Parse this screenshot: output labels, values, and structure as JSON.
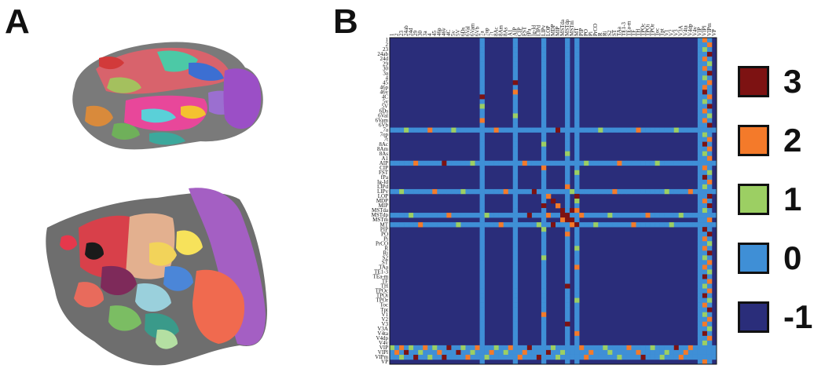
{
  "panels": {
    "a_label": "A",
    "b_label": "B"
  },
  "colors": {
    "neg1": "#2a2d7a",
    "zero": "#3f8fd6",
    "one": "#9ccf63",
    "two": "#f47a2a",
    "three": "#7d1212"
  },
  "legend": [
    {
      "label": "3",
      "color": "#7d1212"
    },
    {
      "label": "2",
      "color": "#f47a2a"
    },
    {
      "label": "1",
      "color": "#9ccf63"
    },
    {
      "label": "0",
      "color": "#3f8fd6"
    },
    {
      "label": "-1",
      "color": "#2a2d7a"
    }
  ],
  "chart_data": {
    "type": "heatmap",
    "row_labels": [
      "1",
      "2",
      "23",
      "24ab",
      "24d",
      "29",
      "30",
      "3a",
      "4",
      "45",
      "46p",
      "46v",
      "4C",
      "5v",
      "5V",
      "6Ds",
      "6Val",
      "6Vam",
      "6Vb",
      "7a",
      "7op",
      "7t",
      "8Ac",
      "8Am",
      "8As",
      "A1",
      "AIP",
      "CIP",
      "FST",
      "fPa",
      "Ig-Id",
      "LIPd",
      "LIPv",
      "LOP",
      "MDP",
      "MIP",
      "MSTda",
      "MSTdp",
      "MSTm",
      "MT",
      "PIP",
      "PO",
      "Pi",
      "PrCO",
      "R",
      "Ri",
      "S2",
      "ST",
      "TAa",
      "TE1-3",
      "TEa-m",
      "TF",
      "TH",
      "TPOc",
      "TPOi",
      "TPOr",
      "Toc",
      "Tpt",
      "V1",
      "V2",
      "V3",
      "V3A",
      "V4ta",
      "V4dp",
      "V4v",
      "VIP",
      "VIPl",
      "VIPm",
      "VP"
    ],
    "col_labels": [
      "1",
      "2",
      "23",
      "24ab",
      "24d",
      "29",
      "30",
      "3a",
      "4",
      "45",
      "46p",
      "46v",
      "4C",
      "5v",
      "5V",
      "6Ds",
      "6Val",
      "6Vam",
      "6Vb",
      "7a",
      "7op",
      "7t",
      "8Ac",
      "8Am",
      "8As",
      "A1",
      "AIP",
      "CIP",
      "FST",
      "fPa",
      "Ig-Id",
      "LIPd",
      "LIPv",
      "LOP",
      "MDP",
      "MIP",
      "MSTda",
      "MSTdp",
      "MSTm",
      "MT",
      "PIP",
      "PO",
      "Pi",
      "PrCO",
      "R",
      "Ri",
      "S2",
      "ST",
      "TAa",
      "TE1-3",
      "TEa-m",
      "TF",
      "TH",
      "TPOc",
      "TPOi",
      "TPOr",
      "Toc",
      "Tpt",
      "V1",
      "V2",
      "V3",
      "V3A",
      "V4ta",
      "V4dp",
      "V4v",
      "VIP",
      "VIPl",
      "VIPm",
      "VP"
    ],
    "value_range": [
      -1,
      3
    ],
    "base_value": -1,
    "zero_rows": [
      19,
      26,
      32,
      37,
      39,
      65,
      66,
      67
    ],
    "zero_cols": [
      19,
      26,
      32,
      37,
      39,
      65,
      66,
      67
    ],
    "cells": [
      [
        0,
        66,
        2
      ],
      [
        1,
        67,
        2
      ],
      [
        2,
        66,
        1
      ],
      [
        3,
        67,
        3
      ],
      [
        4,
        66,
        2
      ],
      [
        5,
        67,
        1
      ],
      [
        6,
        66,
        2
      ],
      [
        7,
        67,
        3
      ],
      [
        8,
        66,
        1
      ],
      [
        9,
        67,
        2
      ],
      [
        10,
        66,
        2
      ],
      [
        11,
        66,
        3
      ],
      [
        12,
        67,
        2
      ],
      [
        13,
        66,
        1
      ],
      [
        14,
        67,
        3
      ],
      [
        15,
        66,
        2
      ],
      [
        16,
        67,
        1
      ],
      [
        17,
        66,
        2
      ],
      [
        18,
        67,
        3
      ],
      [
        20,
        66,
        1
      ],
      [
        21,
        67,
        2
      ],
      [
        22,
        66,
        3
      ],
      [
        23,
        67,
        2
      ],
      [
        24,
        66,
        1
      ],
      [
        25,
        67,
        2
      ],
      [
        27,
        66,
        2
      ],
      [
        28,
        67,
        1
      ],
      [
        29,
        66,
        3
      ],
      [
        30,
        67,
        2
      ],
      [
        31,
        66,
        1
      ],
      [
        33,
        67,
        3
      ],
      [
        34,
        66,
        2
      ],
      [
        35,
        67,
        3
      ],
      [
        36,
        66,
        1
      ],
      [
        38,
        67,
        2
      ],
      [
        40,
        66,
        3
      ],
      [
        41,
        67,
        3
      ],
      [
        42,
        66,
        2
      ],
      [
        43,
        67,
        1
      ],
      [
        44,
        66,
        2
      ],
      [
        45,
        67,
        3
      ],
      [
        46,
        66,
        1
      ],
      [
        47,
        67,
        2
      ],
      [
        48,
        66,
        2
      ],
      [
        49,
        67,
        1
      ],
      [
        50,
        66,
        3
      ],
      [
        51,
        67,
        2
      ],
      [
        52,
        66,
        1
      ],
      [
        53,
        67,
        2
      ],
      [
        54,
        66,
        3
      ],
      [
        55,
        67,
        1
      ],
      [
        56,
        66,
        2
      ],
      [
        57,
        67,
        3
      ],
      [
        58,
        66,
        1
      ],
      [
        59,
        67,
        2
      ],
      [
        60,
        66,
        2
      ],
      [
        61,
        67,
        1
      ],
      [
        62,
        66,
        3
      ],
      [
        63,
        67,
        2
      ],
      [
        64,
        66,
        1
      ],
      [
        68,
        66,
        2
      ],
      [
        9,
        26,
        3
      ],
      [
        11,
        26,
        2
      ],
      [
        12,
        19,
        3
      ],
      [
        14,
        19,
        1
      ],
      [
        16,
        26,
        1
      ],
      [
        17,
        19,
        2
      ],
      [
        22,
        32,
        1
      ],
      [
        24,
        37,
        1
      ],
      [
        27,
        32,
        2
      ],
      [
        28,
        39,
        1
      ],
      [
        31,
        37,
        2
      ],
      [
        33,
        39,
        3
      ],
      [
        34,
        39,
        1
      ],
      [
        35,
        32,
        3
      ],
      [
        36,
        39,
        2
      ],
      [
        38,
        37,
        3
      ],
      [
        40,
        32,
        1
      ],
      [
        41,
        37,
        2
      ],
      [
        44,
        39,
        1
      ],
      [
        46,
        32,
        1
      ],
      [
        48,
        39,
        2
      ],
      [
        52,
        37,
        3
      ],
      [
        55,
        39,
        1
      ],
      [
        58,
        32,
        2
      ],
      [
        60,
        37,
        3
      ],
      [
        62,
        39,
        2
      ],
      [
        65,
        0,
        1
      ],
      [
        65,
        2,
        2
      ],
      [
        65,
        4,
        1
      ],
      [
        65,
        7,
        2
      ],
      [
        65,
        9,
        1
      ],
      [
        65,
        12,
        3
      ],
      [
        65,
        15,
        1
      ],
      [
        65,
        18,
        2
      ],
      [
        65,
        22,
        1
      ],
      [
        65,
        25,
        2
      ],
      [
        65,
        29,
        3
      ],
      [
        65,
        34,
        1
      ],
      [
        65,
        40,
        2
      ],
      [
        65,
        45,
        1
      ],
      [
        65,
        50,
        2
      ],
      [
        65,
        55,
        1
      ],
      [
        65,
        60,
        3
      ],
      [
        65,
        63,
        2
      ],
      [
        66,
        1,
        2
      ],
      [
        66,
        3,
        3
      ],
      [
        66,
        6,
        1
      ],
      [
        66,
        10,
        2
      ],
      [
        66,
        14,
        3
      ],
      [
        66,
        17,
        1
      ],
      [
        66,
        21,
        2
      ],
      [
        66,
        24,
        1
      ],
      [
        66,
        28,
        2
      ],
      [
        66,
        33,
        3
      ],
      [
        66,
        36,
        1
      ],
      [
        66,
        42,
        2
      ],
      [
        66,
        46,
        1
      ],
      [
        66,
        52,
        2
      ],
      [
        66,
        58,
        1
      ],
      [
        66,
        62,
        2
      ],
      [
        67,
        2,
        1
      ],
      [
        67,
        5,
        3
      ],
      [
        67,
        8,
        1
      ],
      [
        67,
        11,
        3
      ],
      [
        67,
        16,
        2
      ],
      [
        67,
        20,
        1
      ],
      [
        67,
        27,
        2
      ],
      [
        67,
        31,
        3
      ],
      [
        67,
        35,
        1
      ],
      [
        67,
        41,
        2
      ],
      [
        67,
        48,
        1
      ],
      [
        67,
        53,
        3
      ],
      [
        67,
        57,
        1
      ],
      [
        67,
        61,
        2
      ],
      [
        19,
        3,
        1
      ],
      [
        19,
        8,
        2
      ],
      [
        19,
        13,
        1
      ],
      [
        19,
        22,
        2
      ],
      [
        19,
        35,
        3
      ],
      [
        19,
        44,
        1
      ],
      [
        19,
        52,
        2
      ],
      [
        19,
        60,
        1
      ],
      [
        26,
        5,
        2
      ],
      [
        26,
        11,
        3
      ],
      [
        26,
        17,
        1
      ],
      [
        26,
        28,
        2
      ],
      [
        26,
        41,
        1
      ],
      [
        26,
        48,
        2
      ],
      [
        26,
        56,
        1
      ],
      [
        32,
        2,
        1
      ],
      [
        32,
        9,
        2
      ],
      [
        32,
        15,
        1
      ],
      [
        32,
        24,
        2
      ],
      [
        32,
        30,
        3
      ],
      [
        32,
        38,
        1
      ],
      [
        32,
        47,
        2
      ],
      [
        32,
        58,
        1
      ],
      [
        32,
        63,
        2
      ],
      [
        37,
        4,
        1
      ],
      [
        37,
        12,
        2
      ],
      [
        37,
        20,
        1
      ],
      [
        37,
        29,
        3
      ],
      [
        37,
        33,
        2
      ],
      [
        37,
        36,
        3
      ],
      [
        37,
        40,
        2
      ],
      [
        37,
        46,
        1
      ],
      [
        37,
        54,
        2
      ],
      [
        37,
        61,
        1
      ],
      [
        39,
        6,
        2
      ],
      [
        39,
        14,
        1
      ],
      [
        39,
        23,
        2
      ],
      [
        39,
        31,
        1
      ],
      [
        39,
        34,
        3
      ],
      [
        39,
        38,
        2
      ],
      [
        39,
        43,
        1
      ],
      [
        39,
        51,
        2
      ],
      [
        39,
        59,
        1
      ],
      [
        36,
        36,
        3
      ],
      [
        36,
        38,
        3
      ],
      [
        38,
        36,
        2
      ],
      [
        38,
        38,
        3
      ],
      [
        37,
        37,
        3
      ],
      [
        39,
        39,
        3
      ],
      [
        33,
        33,
        2
      ],
      [
        34,
        34,
        3
      ],
      [
        35,
        35,
        2
      ]
    ]
  }
}
